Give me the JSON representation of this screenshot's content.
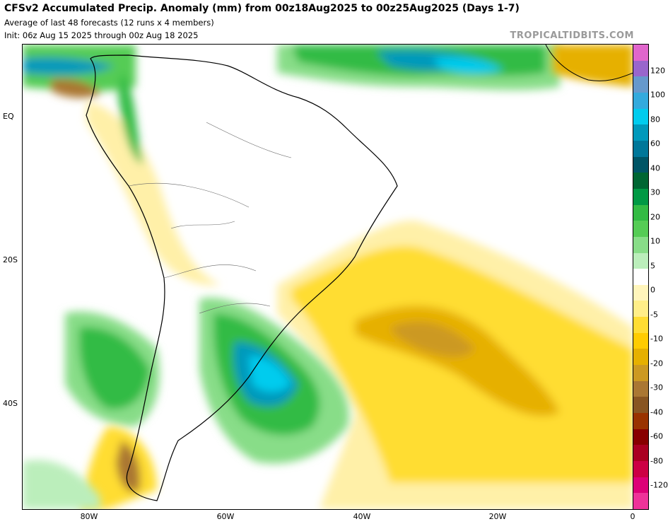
{
  "header": {
    "title": "CFSv2 Accumulated Precip. Anomaly (mm) from 00z18Aug2025 to 00z25Aug2025 (Days 1-7)",
    "line2": "Average of last 48 forecasts (12 runs x 4 members)",
    "line3": "Init: 06z Aug 15 2025 through 00z Aug 18 2025",
    "brand": "TROPICALTIDBITS.COM"
  },
  "axes": {
    "lat_labels": [
      "EQ",
      "20S",
      "40S"
    ],
    "lon_labels": [
      "80W",
      "60W",
      "40W",
      "20W",
      "0"
    ]
  },
  "colorbar": {
    "labels": [
      "120",
      "100",
      "80",
      "60",
      "40",
      "30",
      "20",
      "10",
      "5",
      "0",
      "-5",
      "-10",
      "-20",
      "-30",
      "-40",
      "-60",
      "-80",
      "-120"
    ],
    "colors": [
      "#e066cc",
      "#9966cc",
      "#6699cc",
      "#33aadd",
      "#00ccee",
      "#0099bb",
      "#007799",
      "#005566",
      "#006633",
      "#009944",
      "#33bb44",
      "#55cc55",
      "#88dd88",
      "#bbeebb",
      "#ffffff",
      "#fff5bb",
      "#ffee88",
      "#ffdd33",
      "#ffcc00",
      "#e6b000",
      "#cc9922",
      "#aa7733",
      "#885522",
      "#993300",
      "#880000",
      "#aa0022",
      "#cc0044",
      "#dd0077",
      "#ee3399"
    ]
  },
  "regions": {
    "wet": [
      "north-coast-band",
      "northwest-band",
      "southern-chile",
      "la-plata-anomaly",
      "southeast-coast-band"
    ],
    "dry": [
      "south-atlantic-broad",
      "patagonia-dry",
      "africa-west-dry",
      "northern-south-america-dry"
    ]
  }
}
